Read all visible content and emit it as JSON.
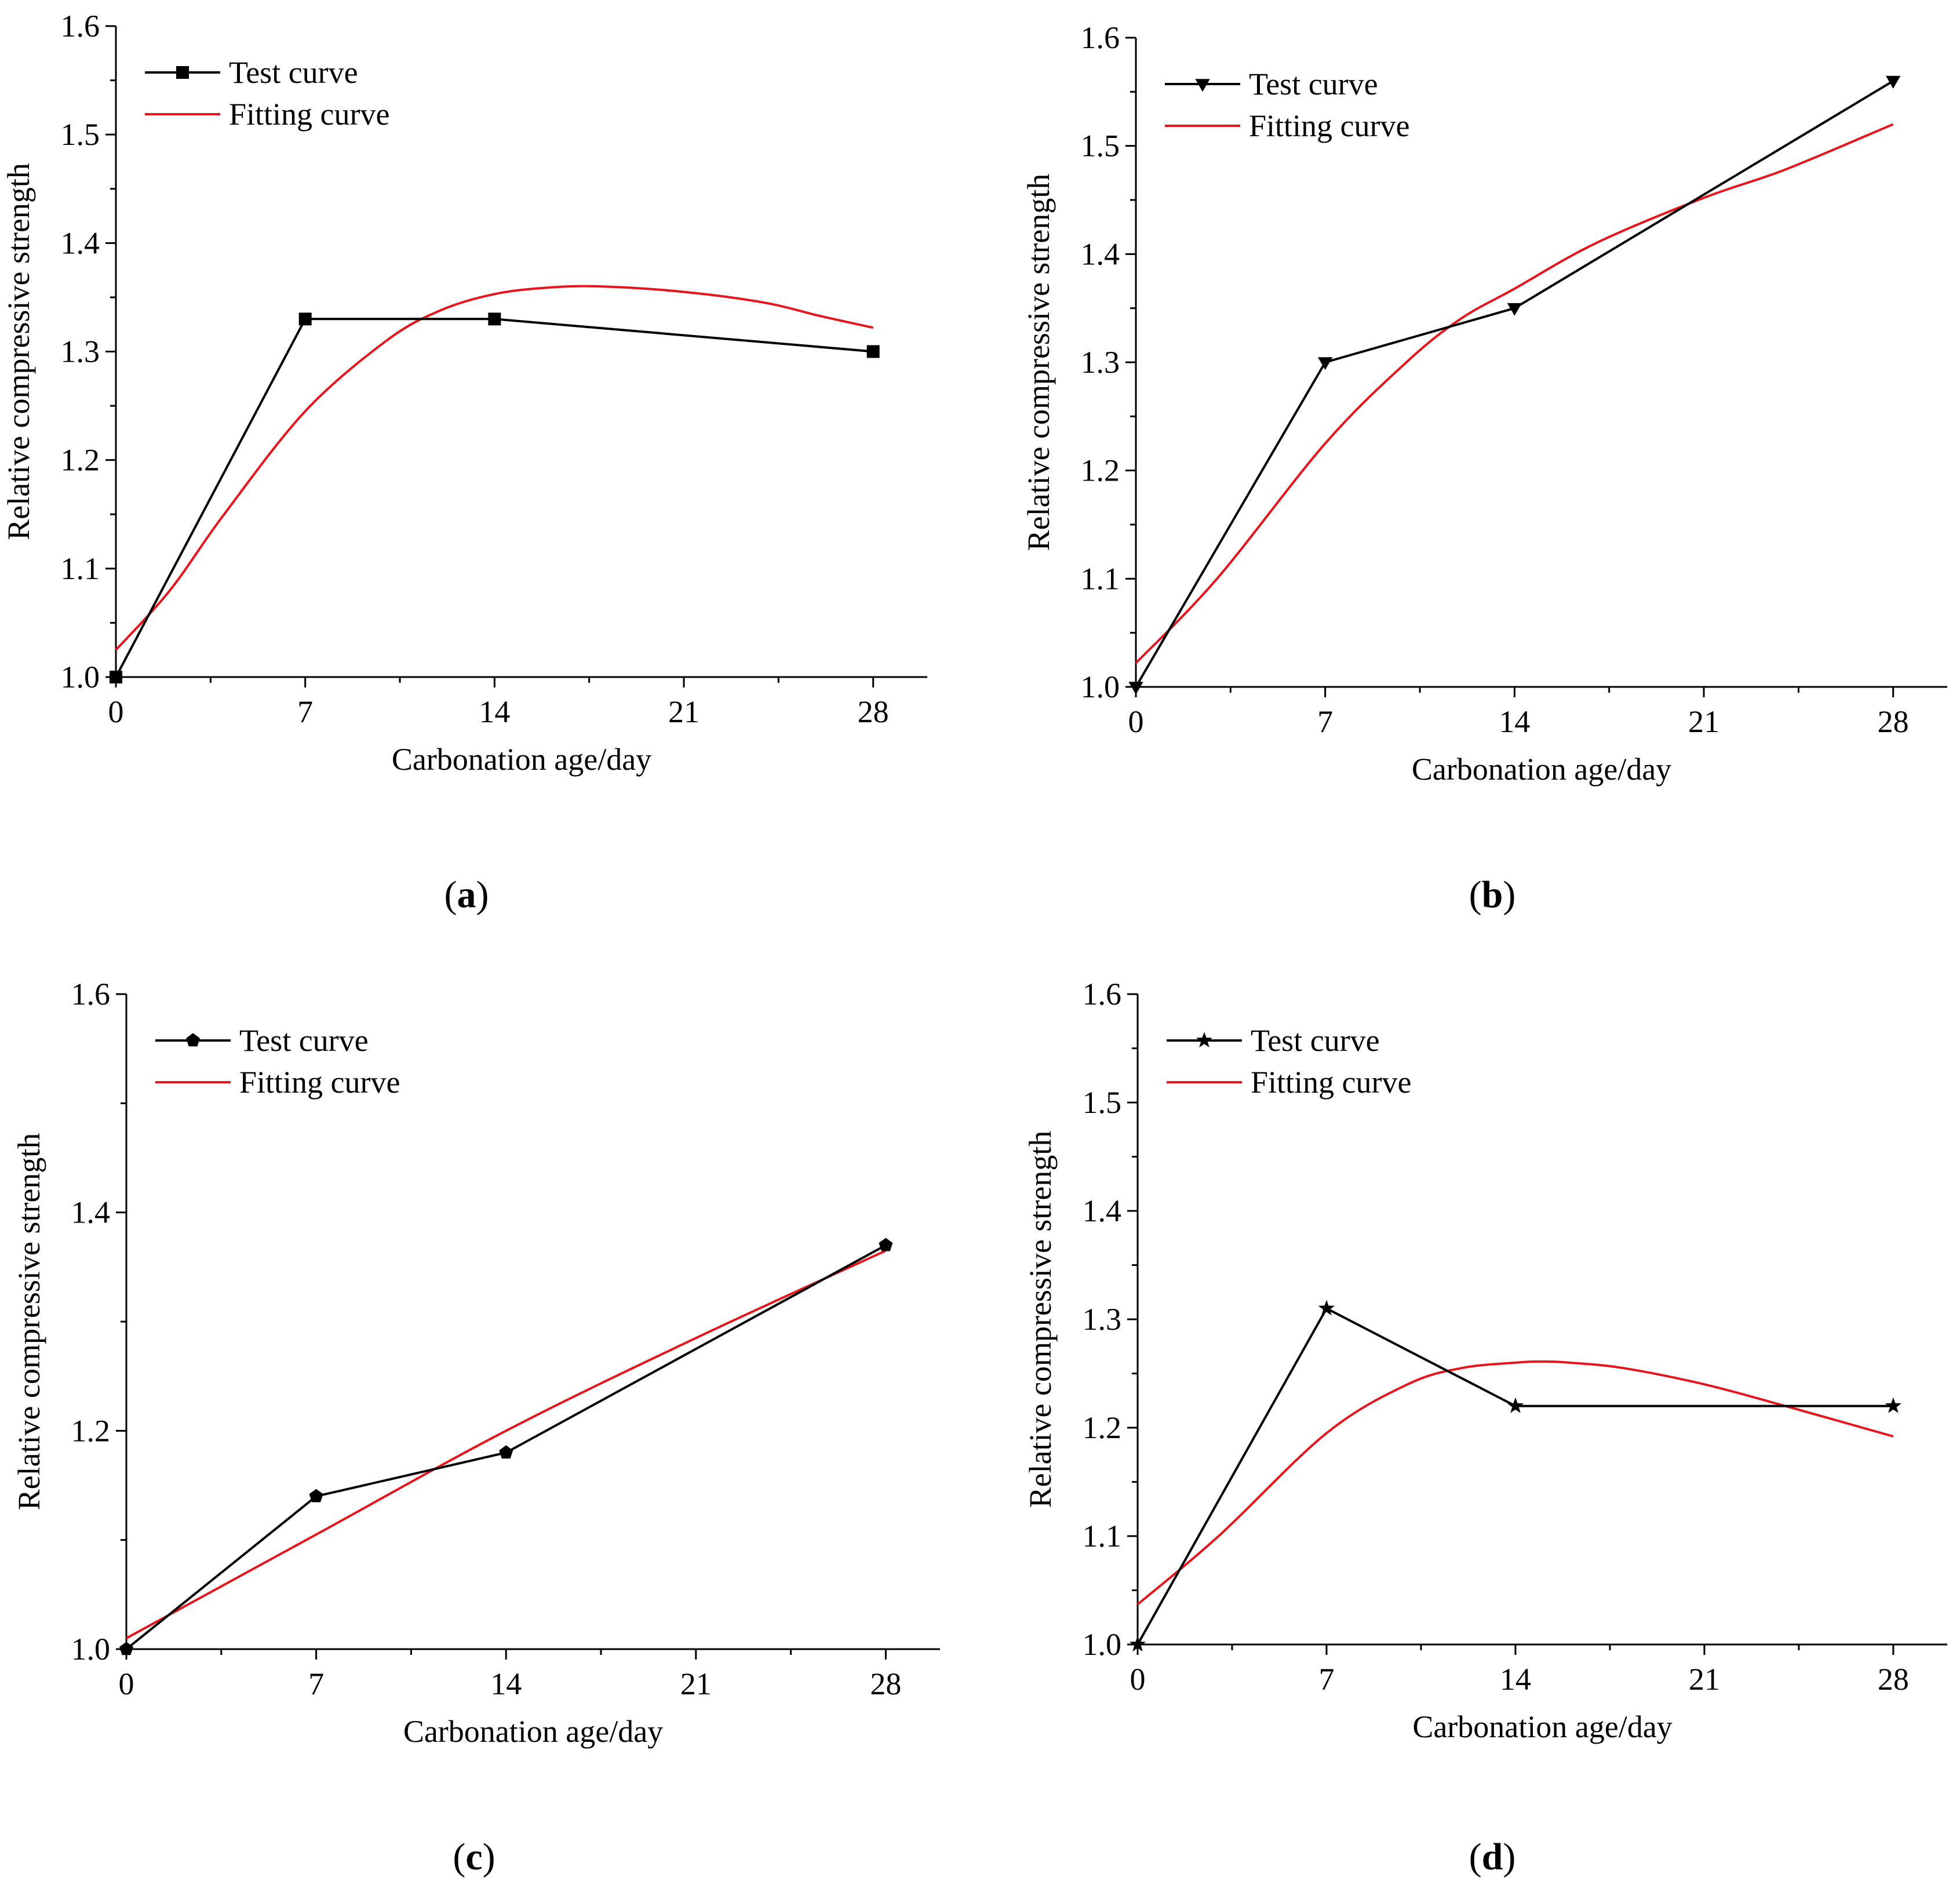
{
  "chart_data": [
    {
      "panel": "a",
      "type": "line",
      "title": "",
      "xlabel": "Carbonation age/day",
      "ylabel": "Relative compressive strength",
      "xlim": [
        0,
        30
      ],
      "ylim": [
        1.0,
        1.6
      ],
      "xticks": [
        0,
        7,
        14,
        21,
        28
      ],
      "yticks": [
        1.0,
        1.1,
        1.2,
        1.3,
        1.4,
        1.5,
        1.6
      ],
      "ytick_labels": [
        "1.0",
        "1.1",
        "1.2",
        "1.3",
        "1.4",
        "1.5",
        "1.6"
      ],
      "marker": "square",
      "legend_position": "top-left",
      "series": [
        {
          "name": "Test curve",
          "color": "#000000",
          "x": [
            0,
            7,
            14,
            28
          ],
          "values": [
            1.0,
            1.33,
            1.33,
            1.3
          ]
        },
        {
          "name": "Fitting curve",
          "color": "#e8141b",
          "x": [
            0,
            2,
            4,
            7,
            10,
            12,
            14,
            16,
            18,
            21,
            24,
            26,
            28
          ],
          "values": [
            1.025,
            1.08,
            1.15,
            1.245,
            1.31,
            1.338,
            1.353,
            1.359,
            1.36,
            1.355,
            1.345,
            1.333,
            1.322
          ]
        }
      ],
      "caption": {
        "open": "(",
        "letter": "a",
        "close": ")"
      }
    },
    {
      "panel": "b",
      "type": "line",
      "title": "",
      "xlabel": "Carbonation age/day",
      "ylabel": "Relative compressive strength",
      "xlim": [
        0,
        30
      ],
      "ylim": [
        1.0,
        1.6
      ],
      "xticks": [
        0,
        7,
        14,
        21,
        28
      ],
      "yticks": [
        1.0,
        1.1,
        1.2,
        1.3,
        1.4,
        1.5,
        1.6
      ],
      "ytick_labels": [
        "1.0",
        "1.1",
        "1.2",
        "1.3",
        "1.4",
        "1.5",
        "1.6"
      ],
      "marker": "triangle-down",
      "legend_position": "top-left",
      "series": [
        {
          "name": "Test curve",
          "color": "#000000",
          "x": [
            0,
            7,
            14,
            28
          ],
          "values": [
            1.0,
            1.3,
            1.35,
            1.56
          ]
        },
        {
          "name": "Fitting curve",
          "color": "#e8141b",
          "x": [
            0,
            3,
            7,
            10,
            12,
            14,
            17,
            21,
            24,
            28
          ],
          "values": [
            1.022,
            1.1,
            1.225,
            1.3,
            1.34,
            1.368,
            1.41,
            1.452,
            1.478,
            1.52
          ]
        }
      ],
      "caption": {
        "open": "(",
        "letter": "b",
        "close": ")"
      }
    },
    {
      "panel": "c",
      "type": "line",
      "title": "",
      "xlabel": "Carbonation age/day",
      "ylabel": "Relative compressive strength",
      "xlim": [
        0,
        30
      ],
      "ylim": [
        1.0,
        1.6
      ],
      "xticks": [
        0,
        7,
        14,
        21,
        28
      ],
      "yticks": [
        1.0,
        1.2,
        1.4,
        1.6
      ],
      "ytick_labels": [
        "1.0",
        "1.2",
        "1.4",
        "1.6"
      ],
      "minor_yticks": [
        1.1,
        1.3,
        1.5
      ],
      "marker": "pentagon",
      "legend_position": "top-left",
      "series": [
        {
          "name": "Test curve",
          "color": "#000000",
          "x": [
            0,
            7,
            14,
            28
          ],
          "values": [
            1.0,
            1.14,
            1.18,
            1.37
          ]
        },
        {
          "name": "Fitting curve",
          "color": "#e8141b",
          "x": [
            0,
            7,
            14,
            21,
            28
          ],
          "values": [
            1.01,
            1.105,
            1.2,
            1.285,
            1.365
          ]
        }
      ],
      "caption": {
        "open": "(",
        "letter": "c",
        "close": ")"
      }
    },
    {
      "panel": "d",
      "type": "line",
      "title": "",
      "xlabel": "Carbonation age/day",
      "ylabel": "Relative compressive strength",
      "xlim": [
        0,
        30
      ],
      "ylim": [
        1.0,
        1.6
      ],
      "xticks": [
        0,
        7,
        14,
        21,
        28
      ],
      "yticks": [
        1.0,
        1.1,
        1.2,
        1.3,
        1.4,
        1.5,
        1.6
      ],
      "ytick_labels": [
        "1.0",
        "1.1",
        "1.2",
        "1.3",
        "1.4",
        "1.5",
        "1.6"
      ],
      "marker": "star",
      "legend_position": "top-left",
      "series": [
        {
          "name": "Test curve",
          "color": "#000000",
          "x": [
            0,
            7,
            14,
            28
          ],
          "values": [
            1.0,
            1.31,
            1.22,
            1.22
          ]
        },
        {
          "name": "Fitting curve",
          "color": "#e8141b",
          "x": [
            0,
            3,
            7,
            10,
            12,
            14,
            15,
            16,
            18,
            21,
            24,
            28
          ],
          "values": [
            1.037,
            1.1,
            1.195,
            1.24,
            1.255,
            1.26,
            1.261,
            1.26,
            1.255,
            1.24,
            1.22,
            1.192
          ]
        }
      ],
      "caption": {
        "open": "(",
        "letter": "d",
        "close": ")"
      }
    }
  ]
}
